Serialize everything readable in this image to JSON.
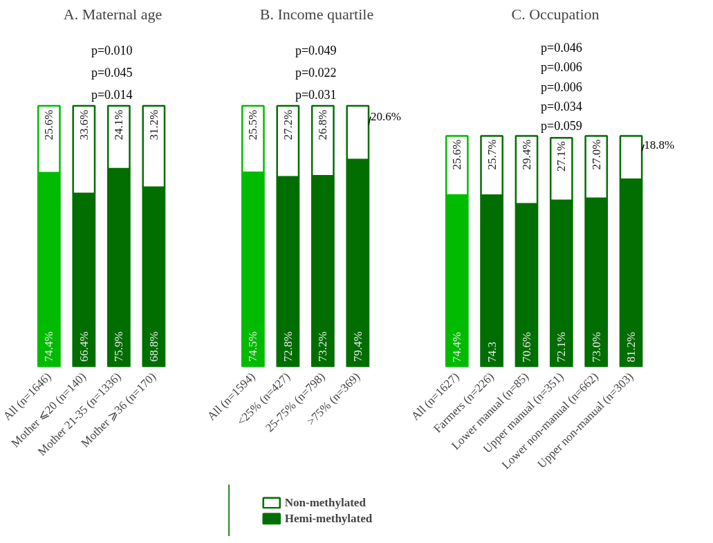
{
  "chart_data": [
    {
      "type": "bar",
      "stacked": true,
      "title": "A. Maternal age",
      "categories": [
        "All (n=1646)",
        "Mother ⩽20 (n=140)",
        "Mother 21-35 (n=1336)",
        "Mother ⩾36 (n=170)"
      ],
      "series": [
        {
          "colors": [
            "#00bb00",
            "#006e00",
            "#006e00",
            "#006e00"
          ],
          "values": [
            74.4,
            66.4,
            75.9,
            68.8
          ],
          "value_labels": [
            "74.4%",
            "66.4%",
            "75.9%",
            "68.8%"
          ]
        },
        {
          "color": "#ffffff",
          "values": [
            25.6,
            33.6,
            24.1,
            31.2
          ],
          "value_labels": [
            "25.6%",
            "33.6%",
            "24.1%",
            "31.2%"
          ]
        }
      ],
      "annotations": [
        "p=0.014",
        "p=0.045",
        "p=0.010"
      ]
    },
    {
      "type": "bar",
      "stacked": true,
      "title": "B. Income quartile",
      "categories": [
        "All (n=1594)",
        "<25% (n=427)",
        "25-75% (n=798)",
        ">75% (n=369)"
      ],
      "series": [
        {
          "name": "Hemi-methylated",
          "colors": [
            "#00bb00",
            "#006e00",
            "#006e00",
            "#006e00"
          ],
          "values": [
            74.5,
            72.8,
            73.2,
            79.4
          ],
          "value_labels": [
            "74.5%",
            "72.8%",
            "73.2%",
            "79.4%"
          ]
        },
        {
          "name": "Non-methylated",
          "color": "#ffffff",
          "values": [
            25.5,
            27.2,
            26.8,
            20.6
          ],
          "value_labels": [
            "25.5%",
            "27.2%",
            "26.8%",
            "20.6%"
          ]
        }
      ],
      "annotations": [
        "p=0.031",
        "p=0.022",
        "p=0.049"
      ],
      "legend": "bottom"
    },
    {
      "type": "bar",
      "stacked": true,
      "title": "C. Occupation",
      "categories": [
        "All (n=1627)",
        "Farmers (n=226)",
        "Lower manual (n=85)",
        "Upper manual (n=351)",
        "Lower non-manual (n=662)",
        "Upper non-manual (n=303)"
      ],
      "series": [
        {
          "colors": [
            "#00bb00",
            "#006e00",
            "#006e00",
            "#006e00",
            "#006e00",
            "#006e00"
          ],
          "values": [
            74.4,
            74.3,
            70.6,
            72.1,
            73.0,
            81.2
          ],
          "value_labels": [
            "74.4%",
            "74.3",
            "70.6%",
            "72.1%",
            "73.0%",
            "81.2%"
          ]
        },
        {
          "color": "#ffffff",
          "values": [
            25.6,
            25.7,
            29.4,
            27.1,
            27.0,
            18.8
          ],
          "value_labels": [
            "25.6%",
            "25.7%",
            "29.4%",
            "27.1%",
            "27.0%",
            "18.8%"
          ]
        }
      ],
      "annotations": [
        "p=0.059",
        "p=0.034",
        "p=0.006",
        "p=0.006",
        "p=0.046"
      ]
    }
  ]
}
